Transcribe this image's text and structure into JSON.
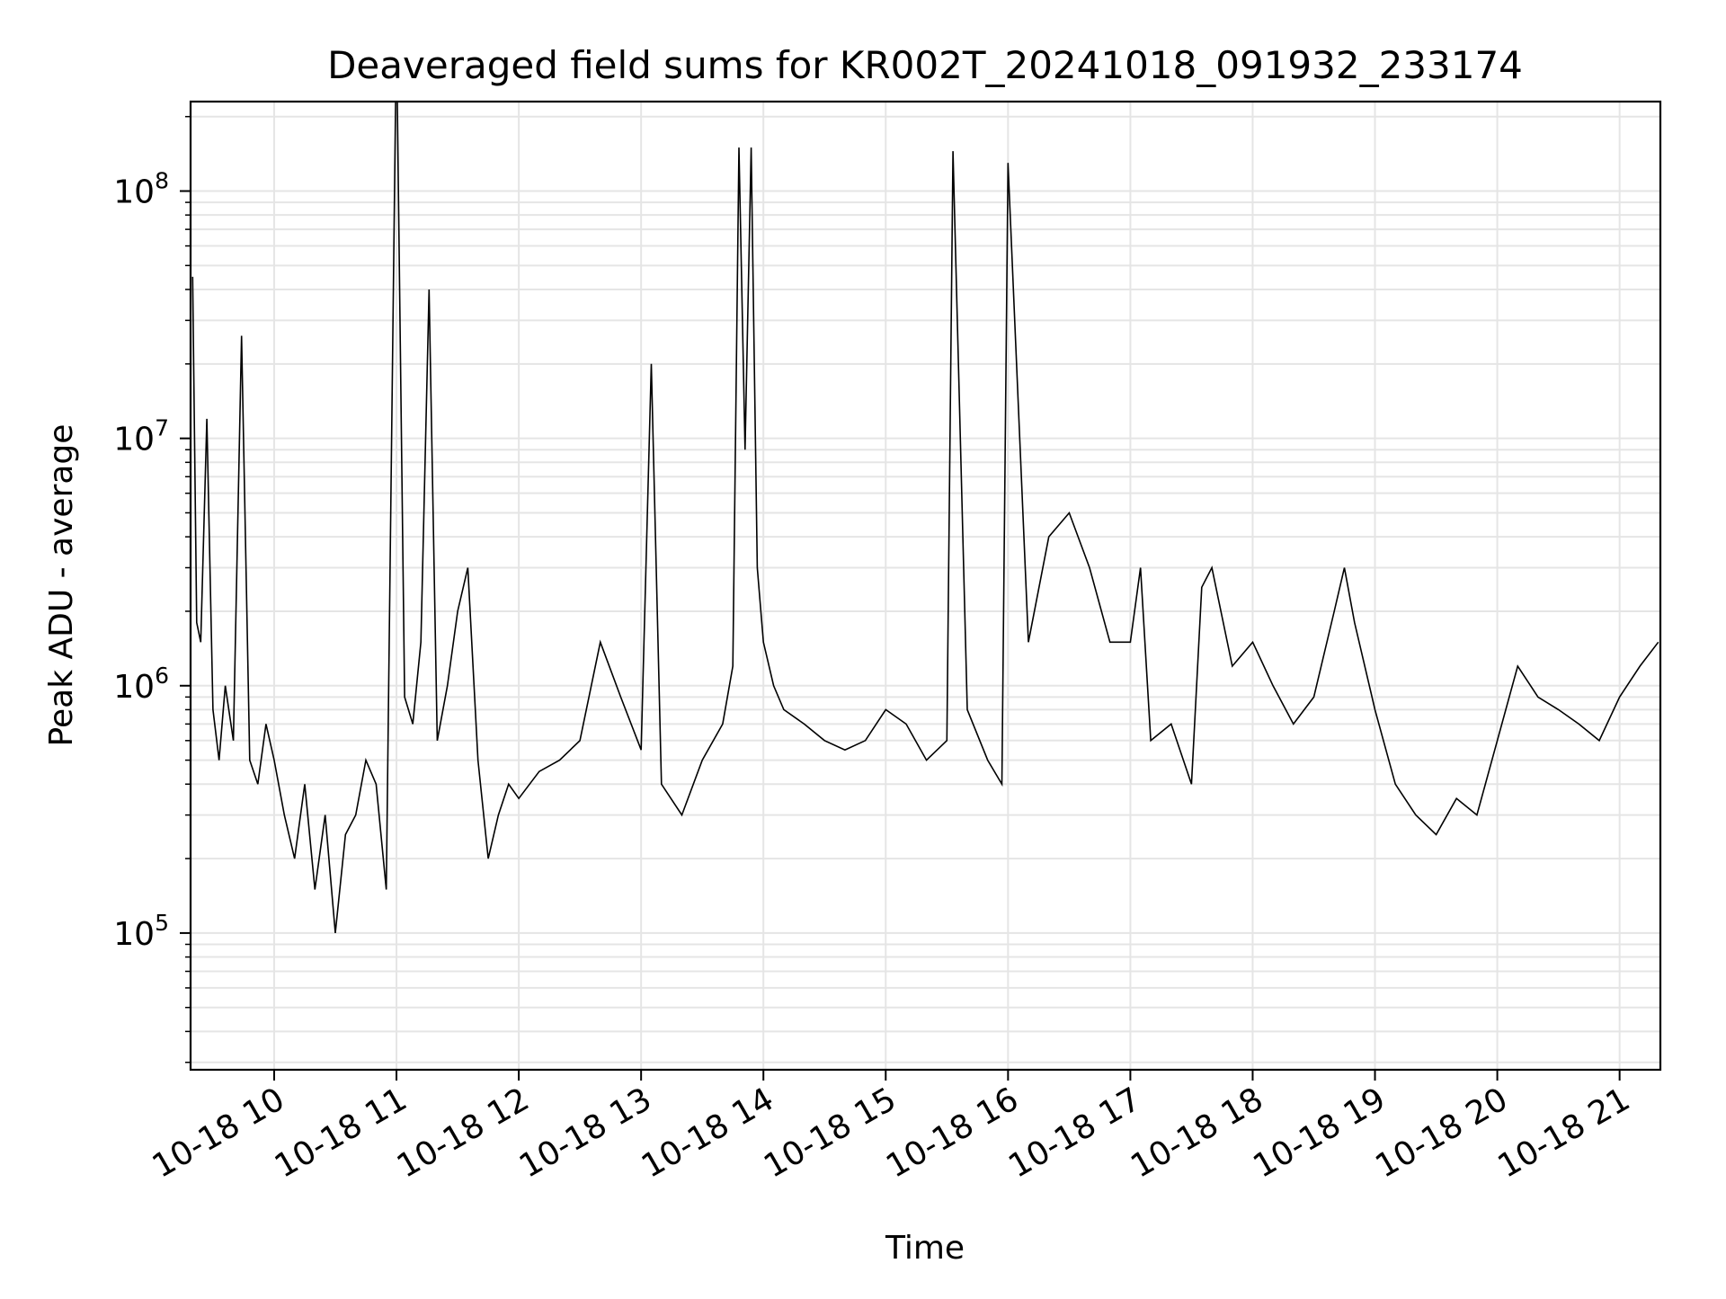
{
  "chart_data": {
    "type": "line",
    "title": "Deaveraged field sums for KR002T_20241018_091932_233174",
    "xlabel": "Time",
    "ylabel": "Peak ADU - average",
    "yscale": "log",
    "ylim": [
      28000,
      230000000
    ],
    "xlim": [
      "2024-10-18 09:19",
      "2024-10-18 21:20"
    ],
    "grid": true,
    "line_color": "#000000",
    "grid_color": "#e5e5e5",
    "y_ticks": [
      {
        "value": 100000,
        "base": "10",
        "exp": "5"
      },
      {
        "value": 1000000,
        "base": "10",
        "exp": "6"
      },
      {
        "value": 10000000,
        "base": "10",
        "exp": "7"
      },
      {
        "value": 100000000,
        "base": "10",
        "exp": "8"
      }
    ],
    "x_ticks": [
      {
        "value": "2024-10-18 10:00",
        "label": "10-18 10"
      },
      {
        "value": "2024-10-18 11:00",
        "label": "10-18 11"
      },
      {
        "value": "2024-10-18 12:00",
        "label": "10-18 12"
      },
      {
        "value": "2024-10-18 13:00",
        "label": "10-18 13"
      },
      {
        "value": "2024-10-18 14:00",
        "label": "10-18 14"
      },
      {
        "value": "2024-10-18 15:00",
        "label": "10-18 15"
      },
      {
        "value": "2024-10-18 16:00",
        "label": "10-18 16"
      },
      {
        "value": "2024-10-18 17:00",
        "label": "10-18 17"
      },
      {
        "value": "2024-10-18 18:00",
        "label": "10-18 18"
      },
      {
        "value": "2024-10-18 19:00",
        "label": "10-18 19"
      },
      {
        "value": "2024-10-18 20:00",
        "label": "10-18 20"
      },
      {
        "value": "2024-10-18 21:00",
        "label": "10-18 21"
      }
    ],
    "series": [
      {
        "x": [
          "2024-10-18 09:20",
          "2024-10-18 09:22",
          "2024-10-18 09:24",
          "2024-10-18 09:27",
          "2024-10-18 09:30",
          "2024-10-18 09:33",
          "2024-10-18 09:36",
          "2024-10-18 09:40",
          "2024-10-18 09:44",
          "2024-10-18 09:48",
          "2024-10-18 09:52",
          "2024-10-18 09:56",
          "2024-10-18 10:00",
          "2024-10-18 10:05",
          "2024-10-18 10:10",
          "2024-10-18 10:15",
          "2024-10-18 10:20",
          "2024-10-18 10:25",
          "2024-10-18 10:30",
          "2024-10-18 10:35",
          "2024-10-18 10:40",
          "2024-10-18 10:45",
          "2024-10-18 10:50",
          "2024-10-18 10:55",
          "2024-10-18 11:00",
          "2024-10-18 11:04",
          "2024-10-18 11:08",
          "2024-10-18 11:12",
          "2024-10-18 11:16",
          "2024-10-18 11:20",
          "2024-10-18 11:25",
          "2024-10-18 11:30",
          "2024-10-18 11:35",
          "2024-10-18 11:40",
          "2024-10-18 11:45",
          "2024-10-18 11:50",
          "2024-10-18 11:55",
          "2024-10-18 12:00",
          "2024-10-18 12:10",
          "2024-10-18 12:20",
          "2024-10-18 12:30",
          "2024-10-18 12:40",
          "2024-10-18 12:50",
          "2024-10-18 13:00",
          "2024-10-18 13:05",
          "2024-10-18 13:10",
          "2024-10-18 13:20",
          "2024-10-18 13:30",
          "2024-10-18 13:40",
          "2024-10-18 13:45",
          "2024-10-18 13:48",
          "2024-10-18 13:51",
          "2024-10-18 13:54",
          "2024-10-18 13:57",
          "2024-10-18 14:00",
          "2024-10-18 14:05",
          "2024-10-18 14:10",
          "2024-10-18 14:20",
          "2024-10-18 14:30",
          "2024-10-18 14:40",
          "2024-10-18 14:50",
          "2024-10-18 15:00",
          "2024-10-18 15:10",
          "2024-10-18 15:20",
          "2024-10-18 15:30",
          "2024-10-18 15:33",
          "2024-10-18 15:40",
          "2024-10-18 15:50",
          "2024-10-18 15:57",
          "2024-10-18 16:00",
          "2024-10-18 16:10",
          "2024-10-18 16:20",
          "2024-10-18 16:30",
          "2024-10-18 16:40",
          "2024-10-18 16:50",
          "2024-10-18 17:00",
          "2024-10-18 17:05",
          "2024-10-18 17:10",
          "2024-10-18 17:20",
          "2024-10-18 17:30",
          "2024-10-18 17:35",
          "2024-10-18 17:40",
          "2024-10-18 17:50",
          "2024-10-18 18:00",
          "2024-10-18 18:10",
          "2024-10-18 18:20",
          "2024-10-18 18:30",
          "2024-10-18 18:40",
          "2024-10-18 18:45",
          "2024-10-18 18:50",
          "2024-10-18 19:00",
          "2024-10-18 19:10",
          "2024-10-18 19:20",
          "2024-10-18 19:30",
          "2024-10-18 19:40",
          "2024-10-18 19:50",
          "2024-10-18 20:00",
          "2024-10-18 20:10",
          "2024-10-18 20:20",
          "2024-10-18 20:30",
          "2024-10-18 20:40",
          "2024-10-18 20:50",
          "2024-10-18 21:00",
          "2024-10-18 21:10",
          "2024-10-18 21:19"
        ],
        "values": [
          45000000,
          1800000,
          1500000,
          12000000,
          800000,
          500000,
          1000000,
          600000,
          26000000,
          500000,
          400000,
          700000,
          500000,
          300000,
          200000,
          400000,
          150000,
          300000,
          100000,
          250000,
          300000,
          500000,
          400000,
          150000,
          450000000,
          900000,
          700000,
          1500000,
          40000000,
          600000,
          1000000,
          2000000,
          3000000,
          500000,
          200000,
          300000,
          400000,
          350000,
          450000,
          500000,
          600000,
          1500000,
          900000,
          550000,
          20000000,
          400000,
          300000,
          500000,
          700000,
          1200000,
          150000000,
          9000000,
          150000000,
          3000000,
          1500000,
          1000000,
          800000,
          700000,
          600000,
          550000,
          600000,
          800000,
          700000,
          500000,
          600000,
          145000000,
          800000,
          500000,
          400000,
          130000000,
          1500000,
          4000000,
          5000000,
          3000000,
          1500000,
          1500000,
          3000000,
          600000,
          700000,
          400000,
          2500000,
          3000000,
          1200000,
          1500000,
          1000000,
          700000,
          900000,
          2000000,
          3000000,
          1800000,
          800000,
          400000,
          300000,
          250000,
          350000,
          300000,
          600000,
          1200000,
          900000,
          800000,
          700000,
          600000,
          900000,
          1200000,
          1500000
        ]
      }
    ]
  }
}
